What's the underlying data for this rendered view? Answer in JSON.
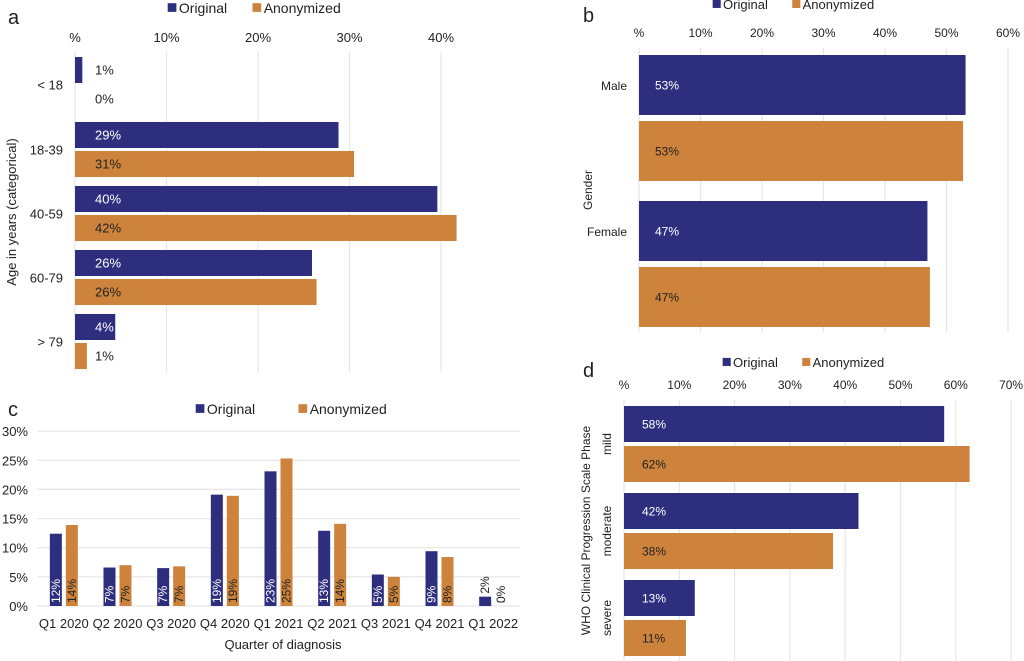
{
  "colors": {
    "original": "#2e2e7f",
    "anonymized": "#cd833b",
    "grid": "#e6e6e6"
  },
  "chart_data": [
    {
      "panel": "a",
      "type": "bar",
      "orientation": "horizontal",
      "legend": [
        "Original",
        "Anonymized"
      ],
      "legend_placement": "top",
      "ylabel": "Age in years (categorical)",
      "xlabel": "",
      "xlim": [
        0,
        42
      ],
      "xticks": [
        "%",
        "10%",
        "20%",
        "30%",
        "40%"
      ],
      "xtick_values": [
        0,
        10,
        20,
        30,
        40
      ],
      "grid": true,
      "categories": [
        "< 18",
        "18-39",
        "40-59",
        "60-79",
        "> 79"
      ],
      "series": [
        {
          "name": "Original",
          "values": [
            0.8,
            28.8,
            39.6,
            25.9,
            4.4
          ],
          "labels": [
            "1%",
            "29%",
            "40%",
            "26%",
            "4%"
          ]
        },
        {
          "name": "Anonymized",
          "values": [
            0,
            30.5,
            41.7,
            26.4,
            1.3
          ],
          "labels": [
            "0%",
            "31%",
            "42%",
            "26%",
            "1%"
          ]
        }
      ]
    },
    {
      "panel": "b",
      "type": "bar",
      "orientation": "horizontal",
      "legend": [
        "Original",
        "Anonymized"
      ],
      "legend_placement": "top",
      "ylabel": "Gender",
      "xlabel": "",
      "xlim": [
        0,
        60
      ],
      "xticks": [
        "%",
        "10%",
        "20%",
        "30%",
        "40%",
        "50%",
        "60%"
      ],
      "xtick_values": [
        0,
        10,
        20,
        30,
        40,
        50,
        60
      ],
      "grid": true,
      "categories": [
        "Male",
        "Female"
      ],
      "series": [
        {
          "name": "Original",
          "values": [
            53.1,
            46.9
          ],
          "labels": [
            "53%",
            "47%"
          ]
        },
        {
          "name": "Anonymized",
          "values": [
            52.7,
            47.3
          ],
          "labels": [
            "53%",
            "47%"
          ]
        }
      ]
    },
    {
      "panel": "c",
      "type": "bar",
      "orientation": "vertical",
      "legend": [
        "Original",
        "Anonymized"
      ],
      "legend_placement": "top",
      "xlabel": "Quarter of diagnosis",
      "ylabel": "",
      "ylim": [
        0,
        30
      ],
      "yticks": [
        "0%",
        "5%",
        "10%",
        "15%",
        "20%",
        "25%",
        "30%"
      ],
      "ytick_values": [
        0,
        5,
        10,
        15,
        20,
        25,
        30
      ],
      "grid": true,
      "categories": [
        "Q1 2020",
        "Q2 2020",
        "Q3 2020",
        "Q4 2020",
        "Q1 2021",
        "Q2 2021",
        "Q3 2021",
        "Q4 2021",
        "Q1 2022"
      ],
      "series": [
        {
          "name": "Original",
          "values": [
            12.4,
            6.6,
            6.5,
            19.1,
            23.1,
            12.9,
            5.4,
            9.4,
            1.6
          ],
          "labels": [
            "12%",
            "7%",
            "7%",
            "19%",
            "23%",
            "13%",
            "5%",
            "9%",
            "2%"
          ]
        },
        {
          "name": "Anonymized",
          "values": [
            13.9,
            7.0,
            6.8,
            18.9,
            25.3,
            14.1,
            5.0,
            8.4,
            0
          ],
          "labels": [
            "14%",
            "7%",
            "7%",
            "19%",
            "25%",
            "14%",
            "5%",
            "8%",
            "0%"
          ]
        }
      ]
    },
    {
      "panel": "d",
      "type": "bar",
      "orientation": "horizontal",
      "legend": [
        "Original",
        "Anonymized"
      ],
      "legend_placement": "top",
      "ylabel": "WHO Clinical Progression Scale Phase",
      "xlabel": "",
      "xlim": [
        0,
        70
      ],
      "xticks": [
        "%",
        "10%",
        "20%",
        "30%",
        "40%",
        "50%",
        "60%",
        "70%"
      ],
      "xtick_values": [
        0,
        10,
        20,
        30,
        40,
        50,
        60,
        70
      ],
      "grid": true,
      "categories": [
        "mild",
        "moderate",
        "severe"
      ],
      "series": [
        {
          "name": "Original",
          "values": [
            57.9,
            42.4,
            12.8
          ],
          "labels": [
            "58%",
            "42%",
            "13%"
          ]
        },
        {
          "name": "Anonymized",
          "values": [
            62.5,
            37.8,
            11.2
          ],
          "labels": [
            "62%",
            "38%",
            "11%"
          ]
        }
      ]
    }
  ]
}
